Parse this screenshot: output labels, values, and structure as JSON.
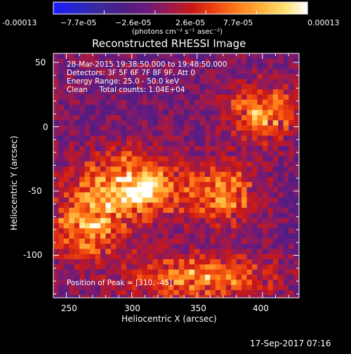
{
  "colorbar": {
    "tick_labels": [
      "-0.00013",
      "−7.7e-05",
      "−2.6e-05",
      "2.6e-05",
      "7.7e-05",
      "0.00013"
    ],
    "units_label": "(photons cm⁻² s⁻¹ asec⁻²)",
    "range": [
      -0.00013,
      0.00013
    ],
    "colors": [
      "#1c1cff",
      "#2a24c8",
      "#3b2a9e",
      "#4a1e84",
      "#6b1a7c",
      "#9a1a50",
      "#c81818",
      "#ee4410",
      "#ff7f1a",
      "#ffb03a",
      "#ffe070",
      "#ffffff"
    ]
  },
  "chart_data": {
    "type": "heatmap",
    "title": "Reconstructed RHESSI Image",
    "xlabel": "Heliocentric X (arcsec)",
    "ylabel": "Heliocentric Y (arcsec)",
    "x_ticks": [
      250,
      300,
      350,
      400
    ],
    "y_ticks": [
      50,
      0,
      -50,
      -100
    ],
    "xlim": [
      240,
      428
    ],
    "ylim": [
      -133,
      57
    ],
    "grid": false,
    "overlay_lines": [
      "28-Mar-2015 19:38:50.000 to 19:48:50.000",
      "Detectors: 3F 5F 6F 7F 8F 9F, Att 0",
      "Energy Range: 25.0 - 50.0 keV",
      "Clean     Total counts: 1.04E+04"
    ],
    "peak_label": "Position of Peak = [310, -45]",
    "peak": {
      "x": 310,
      "y": -45
    },
    "source_regions": [
      {
        "name": "left-lobe",
        "x": 295,
        "y": -45,
        "sx": 38,
        "sy": 26,
        "amp": 1.0
      },
      {
        "name": "left-lower",
        "x": 262,
        "y": -78,
        "sx": 26,
        "sy": 22,
        "amp": 0.75
      },
      {
        "name": "right-top",
        "x": 398,
        "y": 12,
        "sx": 26,
        "sy": 22,
        "amp": 0.75
      },
      {
        "name": "right-mid",
        "x": 368,
        "y": -50,
        "sx": 26,
        "sy": 22,
        "amp": 0.72
      },
      {
        "name": "bottom-right",
        "x": 350,
        "y": -115,
        "sx": 55,
        "sy": 18,
        "amp": 0.7
      }
    ]
  },
  "footer": {
    "timestamp": "17-Sep-2017 07:16"
  }
}
